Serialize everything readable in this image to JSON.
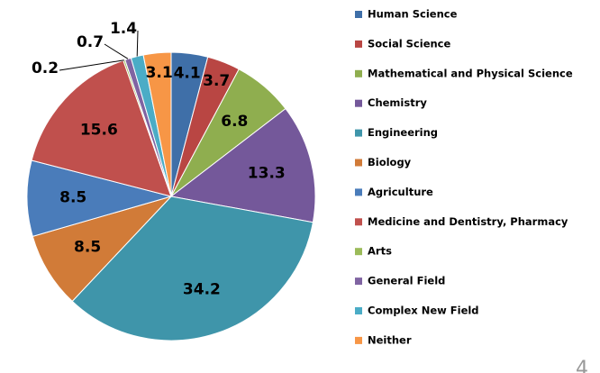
{
  "chart_data": {
    "type": "pie",
    "categories": [
      "Human Science",
      "Social Science",
      "Mathematical and Physical Science",
      "Chemistry",
      "Engineering",
      "Biology",
      "Agriculture",
      "Medicine and Dentistry, Pharmacy",
      "Arts",
      "General Field",
      "Complex New Field",
      "Neither"
    ],
    "values": [
      4.1,
      3.7,
      6.8,
      13.3,
      34.2,
      8.5,
      8.5,
      15.6,
      0.2,
      0.7,
      1.4,
      3.1
    ],
    "colors": [
      "#3f6fa8",
      "#b94643",
      "#8fae4f",
      "#74589a",
      "#3f95aa",
      "#d17b38",
      "#4a7cba",
      "#c0504d",
      "#9bbb59",
      "#8064a2",
      "#4bacc6",
      "#f79646"
    ],
    "legend": "right"
  },
  "page_number": "4"
}
